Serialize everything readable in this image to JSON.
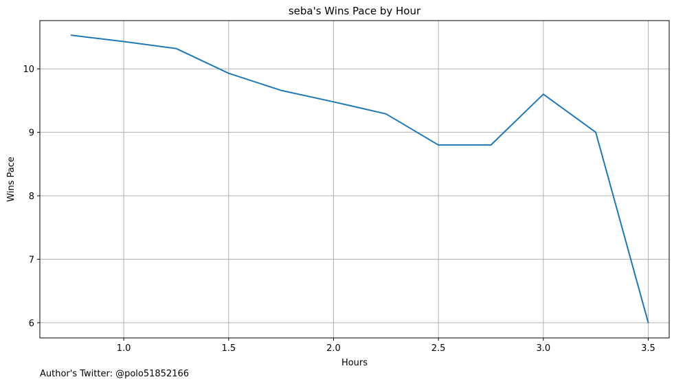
{
  "chart_data": {
    "type": "line",
    "title": "seba's Wins Pace by Hour",
    "xlabel": "Hours",
    "ylabel": "Wins Pace",
    "xlim": [
      0.6,
      3.6
    ],
    "ylim": [
      5.76,
      10.76
    ],
    "x_ticks": [
      1.0,
      1.5,
      2.0,
      2.5,
      3.0,
      3.5
    ],
    "x_tick_labels": [
      "1.0",
      "1.5",
      "2.0",
      "2.5",
      "3.0",
      "3.5"
    ],
    "y_ticks": [
      6,
      7,
      8,
      9,
      10
    ],
    "y_tick_labels": [
      "6",
      "7",
      "8",
      "9",
      "10"
    ],
    "grid": true,
    "series": [
      {
        "color": "#1f77b4",
        "x": [
          0.75,
          1.0,
          1.25,
          1.5,
          1.75,
          2.0,
          2.25,
          2.5,
          2.75,
          3.0,
          3.25,
          3.5
        ],
        "y": [
          10.53,
          10.43,
          10.32,
          9.93,
          9.66,
          9.48,
          9.29,
          8.8,
          8.8,
          9.6,
          9.0,
          6.0
        ]
      }
    ]
  },
  "footnote": "Author's Twitter: @polo51852166"
}
